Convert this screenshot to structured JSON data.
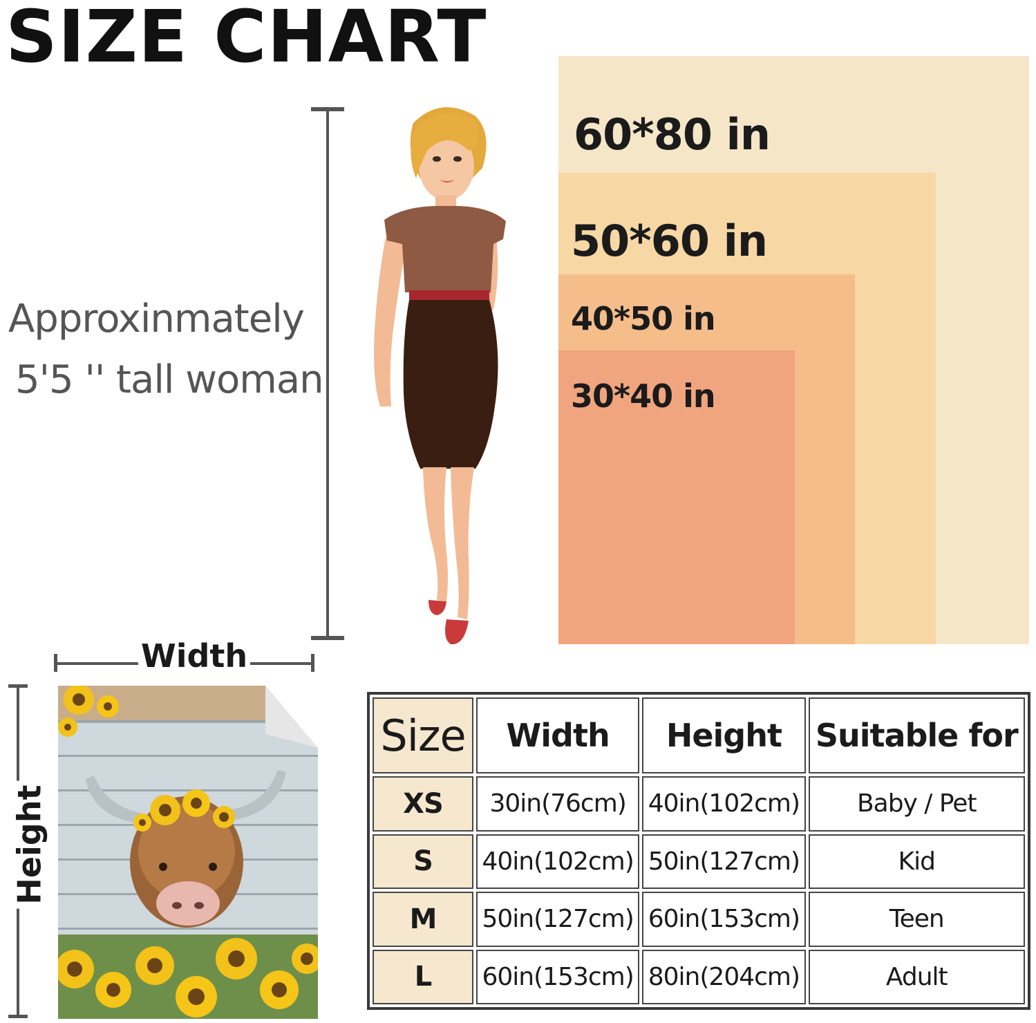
{
  "title": "SIZE CHART",
  "caption": {
    "line1": "Approxinmately",
    "line2": "5'5 '' tall woman"
  },
  "sizes_graphic": [
    {
      "label": "60*80 in",
      "color": "#f5e6c8"
    },
    {
      "label": "50*60 in",
      "color": "#f7d7a4"
    },
    {
      "label": "40*50 in",
      "color": "#f4bd8a"
    },
    {
      "label": "30*40 in",
      "color": "#f0a57e"
    }
  ],
  "blanket": {
    "width_label": "Width",
    "height_label": "Height"
  },
  "table": {
    "headers": [
      "Size",
      "Width",
      "Height",
      "Suitable for"
    ],
    "rows": [
      [
        "XS",
        "30in(76cm)",
        "40in(102cm)",
        "Baby / Pet"
      ],
      [
        "S",
        "40in(102cm)",
        "50in(127cm)",
        "Kid"
      ],
      [
        "M",
        "50in(127cm)",
        "60in(153cm)",
        "Teen"
      ],
      [
        "L",
        "60in(153cm)",
        "80in(204cm)",
        "Adult"
      ]
    ]
  }
}
